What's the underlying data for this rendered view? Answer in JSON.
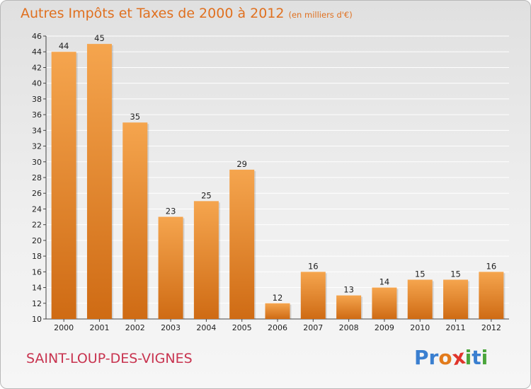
{
  "header": {
    "title": "Autres Impôts et Taxes de 2000 à 2012",
    "unit": "(en milliers d'€)"
  },
  "footer": {
    "commune": "SAINT-LOUP-DES-VIGNES",
    "brand_letters": [
      {
        "char": "P",
        "color": "#3a7fd0"
      },
      {
        "char": "r",
        "color": "#3a7fd0"
      },
      {
        "char": "o",
        "color": "#e27b1c"
      },
      {
        "char": "x",
        "color": "#e0342b"
      },
      {
        "char": "i",
        "color": "#4aa53b"
      },
      {
        "char": "t",
        "color": "#3a7fd0"
      },
      {
        "char": "i",
        "color": "#4aa53b"
      }
    ]
  },
  "colors": {
    "title": "#e0701f",
    "commune": "#c8334f",
    "bar_light": "#f5a54e",
    "bar_dark": "#cf6b14",
    "grid": "#ffffff"
  },
  "chart_data": {
    "type": "bar",
    "title": "Autres Impôts et Taxes de 2000 à 2012",
    "subtitle": "(en milliers d'€)",
    "xlabel": "",
    "ylabel": "",
    "categories": [
      "2000",
      "2001",
      "2002",
      "2003",
      "2004",
      "2005",
      "2006",
      "2007",
      "2008",
      "2009",
      "2010",
      "2011",
      "2012"
    ],
    "values": [
      44,
      45,
      35,
      23,
      25,
      29,
      12,
      16,
      13,
      14,
      15,
      15,
      16
    ],
    "ylim": [
      10,
      46
    ],
    "yticks": [
      10,
      12,
      14,
      16,
      18,
      20,
      22,
      24,
      26,
      28,
      30,
      32,
      34,
      36,
      38,
      40,
      42,
      44,
      46
    ],
    "grid": true,
    "legend": "none"
  }
}
